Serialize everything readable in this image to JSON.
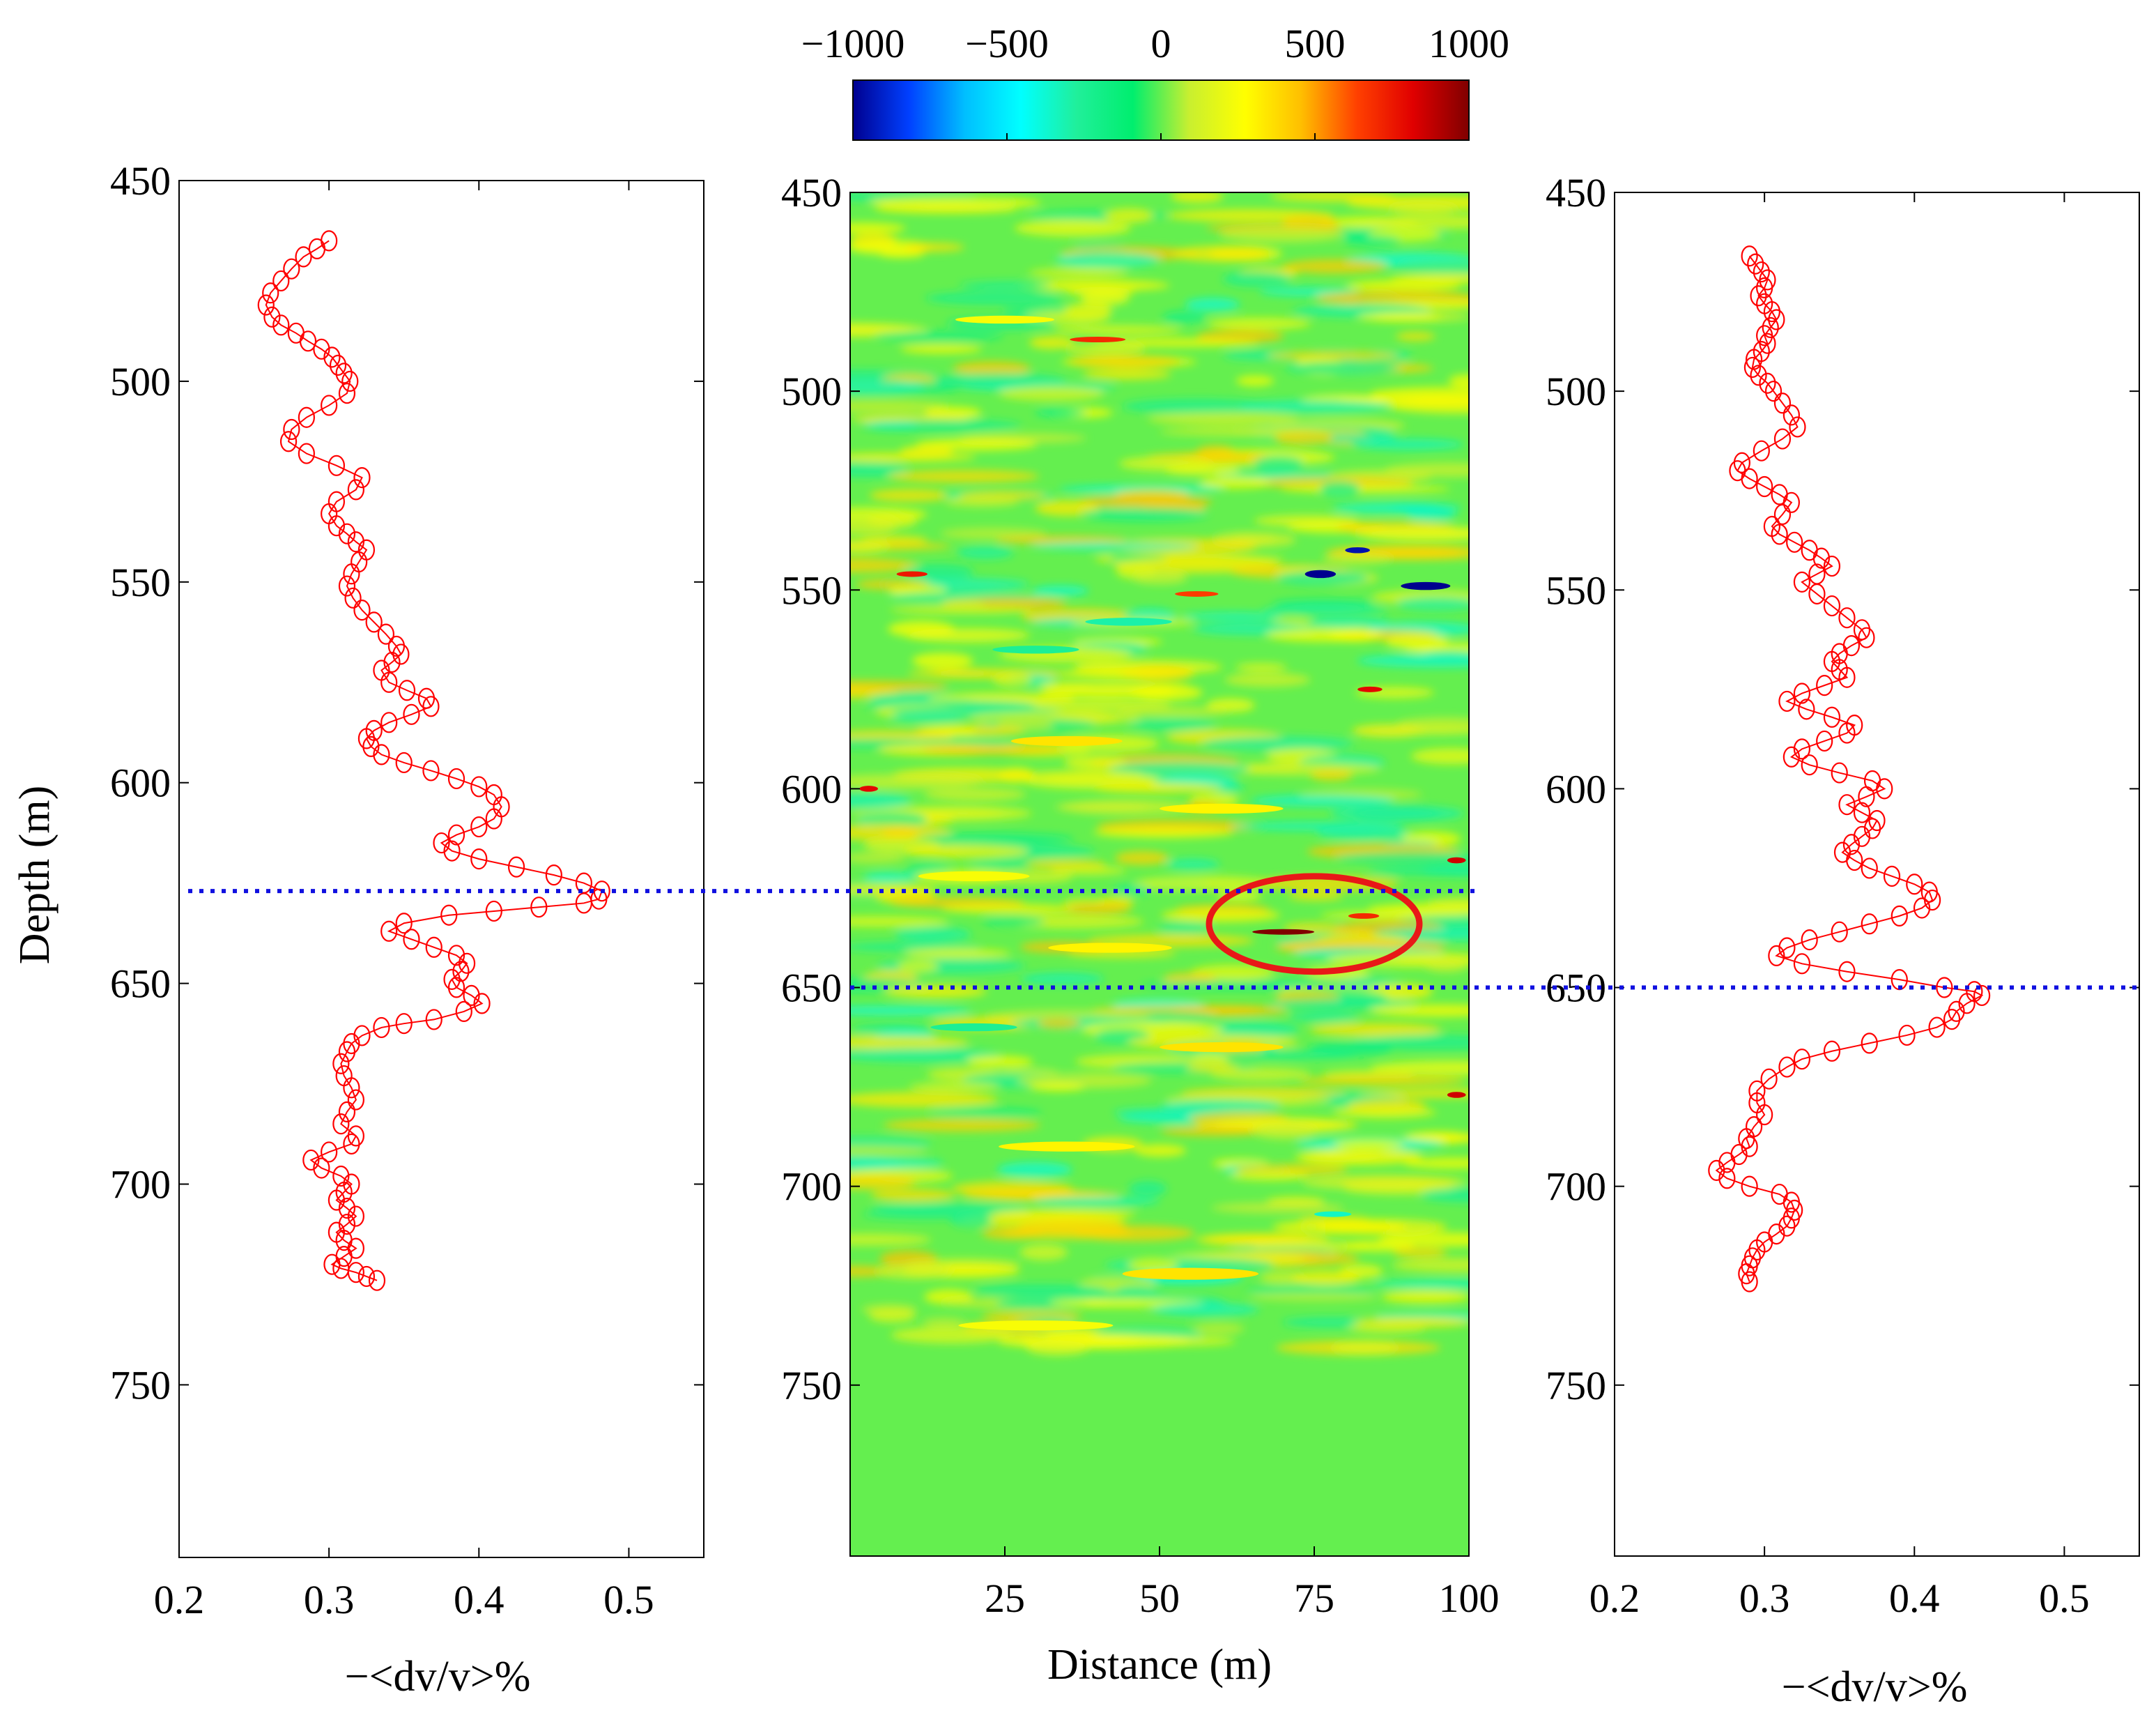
{
  "colors": {
    "series": "#ff0000",
    "guide_line": "#1010e0",
    "annotation": "#e81818",
    "colormap": [
      "#00008f",
      "#0040ff",
      "#00bfff",
      "#00ffff",
      "#20ef9a",
      "#00ee6e",
      "#c8ef30",
      "#ffff00",
      "#ffbf00",
      "#ff4000",
      "#e00000",
      "#800000"
    ]
  },
  "chart_data": [
    {
      "type": "line",
      "name": "left-profile",
      "xlabel": "−<dv/v>%",
      "ylabel": "Depth (m)",
      "xlim": [
        0.2,
        0.55
      ],
      "ylim": [
        793,
        450
      ],
      "xticks": [
        0.2,
        0.3,
        0.4,
        0.5
      ],
      "xtick_labels": [
        "0.2",
        "0.3",
        "0.4",
        "0.5"
      ],
      "yticks": [
        450,
        500,
        550,
        600,
        650,
        700,
        750
      ],
      "ytick_labels": [
        "450",
        "500",
        "550",
        "600",
        "650",
        "700",
        "750"
      ],
      "marker": "circle",
      "guide_depth": 627,
      "series": [
        {
          "name": "−<dv/v>%",
          "x": [
            0.3,
            0.292,
            0.283,
            0.275,
            0.268,
            0.261,
            0.258,
            0.262,
            0.268,
            0.278,
            0.286,
            0.295,
            0.302,
            0.306,
            0.31,
            0.314,
            0.312,
            0.3,
            0.285,
            0.275,
            0.273,
            0.285,
            0.305,
            0.322,
            0.318,
            0.305,
            0.3,
            0.305,
            0.312,
            0.318,
            0.325,
            0.32,
            0.315,
            0.312,
            0.316,
            0.322,
            0.33,
            0.338,
            0.345,
            0.348,
            0.342,
            0.335,
            0.34,
            0.352,
            0.365,
            0.368,
            0.355,
            0.34,
            0.33,
            0.325,
            0.328,
            0.335,
            0.35,
            0.368,
            0.385,
            0.4,
            0.41,
            0.415,
            0.41,
            0.4,
            0.385,
            0.375,
            0.382,
            0.4,
            0.425,
            0.45,
            0.47,
            0.482,
            0.48,
            0.47,
            0.44,
            0.41,
            0.38,
            0.35,
            0.34,
            0.355,
            0.37,
            0.385,
            0.392,
            0.388,
            0.382,
            0.385,
            0.395,
            0.402,
            0.39,
            0.37,
            0.35,
            0.335,
            0.322,
            0.315,
            0.312,
            0.308,
            0.31,
            0.315,
            0.318,
            0.312,
            0.308,
            0.318,
            0.315,
            0.3,
            0.288,
            0.295,
            0.308,
            0.315,
            0.31,
            0.305,
            0.312,
            0.318,
            0.312,
            0.305,
            0.31,
            0.318,
            0.31,
            0.302,
            0.308,
            0.318,
            0.325,
            0.332
          ],
          "y": [
            465,
            467,
            469,
            472,
            475,
            478,
            481,
            484,
            486,
            488,
            490,
            492,
            494,
            496,
            498,
            500,
            503,
            506,
            509,
            512,
            515,
            518,
            521,
            524,
            527,
            530,
            533,
            536,
            538,
            540,
            542,
            545,
            548,
            551,
            554,
            557,
            560,
            563,
            566,
            568,
            570,
            572,
            575,
            577,
            579,
            581,
            583,
            585,
            587,
            589,
            591,
            593,
            595,
            597,
            599,
            601,
            603,
            606,
            609,
            611,
            613,
            615,
            617,
            619,
            621,
            623,
            625,
            627,
            629,
            630,
            631,
            632,
            633,
            635,
            637,
            639,
            641,
            643,
            645,
            647,
            649,
            651,
            653,
            655,
            657,
            659,
            660,
            661,
            663,
            665,
            667,
            670,
            673,
            676,
            679,
            682,
            685,
            688,
            690,
            692,
            694,
            696,
            698,
            700,
            702,
            704,
            706,
            708,
            710,
            712,
            714,
            716,
            718,
            720,
            721,
            722,
            723,
            724
          ]
        }
      ]
    },
    {
      "type": "heatmap",
      "name": "velocity-change-section",
      "xlabel": "Distance (m)",
      "ylabel": "",
      "xlim": [
        0,
        100
      ],
      "ylim": [
        793,
        450
      ],
      "xticks": [
        25,
        50,
        75,
        100
      ],
      "xtick_labels": [
        "25",
        "50",
        "75",
        "100"
      ],
      "yticks": [
        450,
        500,
        550,
        600,
        650,
        700,
        750
      ],
      "ytick_labels": [
        "450",
        "500",
        "550",
        "600",
        "650",
        "700",
        "750"
      ],
      "colorbar": {
        "range": [
          -1000,
          1000
        ],
        "ticks": [
          -1000,
          -500,
          0,
          500,
          1000
        ],
        "tick_labels": [
          "−1000",
          "−500",
          "0",
          "500",
          "1000"
        ],
        "placement": "top"
      },
      "data_extent_depth": [
        450,
        741
      ],
      "background_value": 0,
      "annotation": {
        "shape": "ellipse",
        "center": [
          75,
          634
        ],
        "radius": [
          17,
          12
        ]
      },
      "features": [
        {
          "x": 40,
          "y": 487,
          "value": 700,
          "w": 9,
          "h": 1.2
        },
        {
          "x": 25,
          "y": 482,
          "value": 250,
          "w": 16,
          "h": 2
        },
        {
          "x": 82,
          "y": 540,
          "value": -950,
          "w": 4,
          "h": 1.5
        },
        {
          "x": 76,
          "y": 546,
          "value": -1000,
          "w": 5,
          "h": 2
        },
        {
          "x": 93,
          "y": 549,
          "value": -1000,
          "w": 8,
          "h": 2
        },
        {
          "x": 56,
          "y": 551,
          "value": 650,
          "w": 7,
          "h": 1.2
        },
        {
          "x": 10,
          "y": 546,
          "value": 750,
          "w": 5,
          "h": 1
        },
        {
          "x": 45,
          "y": 558,
          "value": -300,
          "w": 14,
          "h": 2
        },
        {
          "x": 30,
          "y": 565,
          "value": -250,
          "w": 14,
          "h": 2
        },
        {
          "x": 84,
          "y": 575,
          "value": 800,
          "w": 4,
          "h": 1.2
        },
        {
          "x": 35,
          "y": 588,
          "value": 350,
          "w": 18,
          "h": 2.5
        },
        {
          "x": 3,
          "y": 600,
          "value": 800,
          "w": 3,
          "h": 1.5
        },
        {
          "x": 60,
          "y": 605,
          "value": 300,
          "w": 20,
          "h": 2.5
        },
        {
          "x": 98,
          "y": 618,
          "value": 850,
          "w": 3,
          "h": 1.5
        },
        {
          "x": 20,
          "y": 622,
          "value": 250,
          "w": 18,
          "h": 2.5
        },
        {
          "x": 70,
          "y": 636,
          "value": 1000,
          "w": 10,
          "h": 1.3
        },
        {
          "x": 83,
          "y": 632,
          "value": 700,
          "w": 5,
          "h": 1
        },
        {
          "x": 42,
          "y": 640,
          "value": 300,
          "w": 20,
          "h": 2.5
        },
        {
          "x": 20,
          "y": 660,
          "value": -250,
          "w": 14,
          "h": 2
        },
        {
          "x": 60,
          "y": 665,
          "value": 350,
          "w": 20,
          "h": 2.5
        },
        {
          "x": 98,
          "y": 677,
          "value": 850,
          "w": 3,
          "h": 1.5
        },
        {
          "x": 35,
          "y": 690,
          "value": 300,
          "w": 22,
          "h": 2.5
        },
        {
          "x": 78,
          "y": 707,
          "value": -350,
          "w": 6,
          "h": 1.2
        },
        {
          "x": 55,
          "y": 722,
          "value": 350,
          "w": 22,
          "h": 3
        },
        {
          "x": 30,
          "y": 735,
          "value": 250,
          "w": 25,
          "h": 2.5
        }
      ]
    },
    {
      "type": "line",
      "name": "right-profile",
      "xlabel": "−<dv/v>%",
      "ylabel": "",
      "xlim": [
        0.2,
        0.55
      ],
      "ylim": [
        793,
        450
      ],
      "xticks": [
        0.2,
        0.3,
        0.4,
        0.5
      ],
      "xtick_labels": [
        "0.2",
        "0.3",
        "0.4",
        "0.5"
      ],
      "yticks": [
        450,
        500,
        550,
        600,
        650,
        700,
        750
      ],
      "ytick_labels": [
        "450",
        "500",
        "550",
        "600",
        "650",
        "700",
        "750"
      ],
      "marker": "circle",
      "guide_depth": 650,
      "series": [
        {
          "name": "−<dv/v>%",
          "x": [
            0.29,
            0.294,
            0.298,
            0.302,
            0.3,
            0.296,
            0.3,
            0.305,
            0.308,
            0.304,
            0.3,
            0.302,
            0.298,
            0.293,
            0.292,
            0.296,
            0.302,
            0.306,
            0.312,
            0.318,
            0.322,
            0.312,
            0.298,
            0.285,
            0.282,
            0.29,
            0.3,
            0.31,
            0.318,
            0.312,
            0.305,
            0.31,
            0.32,
            0.33,
            0.338,
            0.345,
            0.335,
            0.325,
            0.335,
            0.345,
            0.355,
            0.365,
            0.368,
            0.358,
            0.35,
            0.345,
            0.35,
            0.355,
            0.34,
            0.325,
            0.315,
            0.328,
            0.345,
            0.36,
            0.355,
            0.34,
            0.325,
            0.318,
            0.33,
            0.35,
            0.372,
            0.38,
            0.368,
            0.355,
            0.365,
            0.375,
            0.372,
            0.365,
            0.358,
            0.352,
            0.36,
            0.37,
            0.385,
            0.4,
            0.41,
            0.412,
            0.405,
            0.39,
            0.37,
            0.35,
            0.33,
            0.315,
            0.308,
            0.325,
            0.355,
            0.39,
            0.42,
            0.44,
            0.445,
            0.435,
            0.428,
            0.425,
            0.415,
            0.395,
            0.37,
            0.345,
            0.325,
            0.315,
            0.303,
            0.295,
            0.295,
            0.3,
            0.293,
            0.288,
            0.29,
            0.283,
            0.275,
            0.268,
            0.275,
            0.29,
            0.31,
            0.318,
            0.32,
            0.318,
            0.315,
            0.308,
            0.3,
            0.295,
            0.292,
            0.29,
            0.288,
            0.29
          ],
          "y": [
            466,
            468,
            470,
            472,
            474,
            476,
            478,
            480,
            482,
            484,
            486,
            488,
            490,
            492,
            494,
            496,
            498,
            500,
            503,
            506,
            509,
            512,
            515,
            518,
            520,
            522,
            524,
            526,
            528,
            531,
            534,
            536,
            538,
            540,
            542,
            544,
            546,
            548,
            551,
            554,
            557,
            560,
            562,
            564,
            566,
            568,
            570,
            572,
            574,
            576,
            578,
            580,
            582,
            584,
            586,
            588,
            590,
            592,
            594,
            596,
            598,
            600,
            602,
            604,
            606,
            608,
            610,
            612,
            614,
            616,
            618,
            620,
            622,
            624,
            626,
            628,
            630,
            632,
            634,
            636,
            638,
            640,
            642,
            644,
            646,
            648,
            650,
            651,
            652,
            654,
            656,
            658,
            660,
            662,
            664,
            666,
            668,
            670,
            673,
            676,
            679,
            682,
            685,
            688,
            690,
            692,
            694,
            696,
            698,
            700,
            702,
            704,
            706,
            708,
            710,
            712,
            714,
            716,
            718,
            720,
            722,
            724
          ]
        }
      ]
    }
  ]
}
